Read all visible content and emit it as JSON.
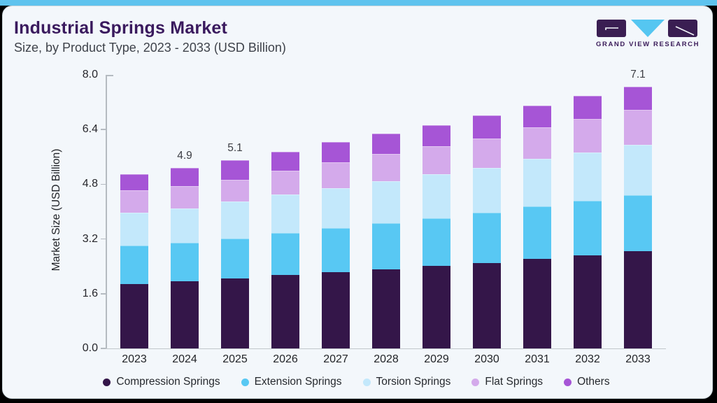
{
  "header": {
    "title": "Industrial Springs Market",
    "subtitle": "Size, by Product Type, 2023 - 2033 (USD Billion)"
  },
  "logo": {
    "text": "GRAND VIEW RESEARCH"
  },
  "colors": {
    "topbar": "#5ec3ee",
    "card_bg": "#f3f7fb",
    "title": "#3a1a5e",
    "logo_dark": "#3a1e52",
    "logo_blue": "#55c6f1",
    "compression": "#341649",
    "extension": "#58c8f3",
    "torsion": "#c3e8fb",
    "flat": "#d4aaeb",
    "others": "#a655d6"
  },
  "chart_data": {
    "type": "bar",
    "stacked": true,
    "title": "Industrial Springs Market Size, by Product Type, 2023 - 2033 (USD Billion)",
    "xlabel": "",
    "ylabel": "Market Size (USD Billion)",
    "ylim": [
      0,
      8.0
    ],
    "y_ticks": [
      "8.0",
      "6.4",
      "4.8",
      "3.2",
      "1.6",
      "0.0"
    ],
    "grid": false,
    "legend_position": "bottom",
    "categories": [
      "2023",
      "2024",
      "2025",
      "2026",
      "2027",
      "2028",
      "2029",
      "2030",
      "2031",
      "2032",
      "2033"
    ],
    "series": [
      {
        "name": "Compression Springs",
        "color": "#341649",
        "values": [
          1.75,
          1.82,
          1.9,
          1.99,
          2.07,
          2.15,
          2.24,
          2.32,
          2.43,
          2.53,
          2.64
        ]
      },
      {
        "name": "Extension Springs",
        "color": "#58c8f3",
        "values": [
          1.04,
          1.04,
          1.08,
          1.15,
          1.2,
          1.25,
          1.28,
          1.36,
          1.42,
          1.48,
          1.52
        ]
      },
      {
        "name": "Torsion Springs",
        "color": "#c3e8fb",
        "values": [
          0.89,
          0.94,
          1.0,
          1.03,
          1.08,
          1.13,
          1.2,
          1.22,
          1.29,
          1.3,
          1.36
        ]
      },
      {
        "name": "Flat Springs",
        "color": "#d4aaeb",
        "values": [
          0.6,
          0.6,
          0.6,
          0.65,
          0.7,
          0.74,
          0.76,
          0.8,
          0.85,
          0.91,
          0.95
        ]
      },
      {
        "name": "Others",
        "color": "#a655d6",
        "values": [
          0.44,
          0.5,
          0.52,
          0.52,
          0.54,
          0.55,
          0.57,
          0.61,
          0.6,
          0.63,
          0.63
        ]
      }
    ],
    "bar_labels": [
      "",
      "4.9",
      "5.1",
      "",
      "",
      "",
      "",
      "",
      "",
      "",
      "7.1"
    ],
    "totals": [
      4.7,
      4.9,
      5.1,
      5.3,
      5.6,
      5.8,
      6.1,
      6.3,
      6.6,
      6.9,
      7.1
    ]
  }
}
